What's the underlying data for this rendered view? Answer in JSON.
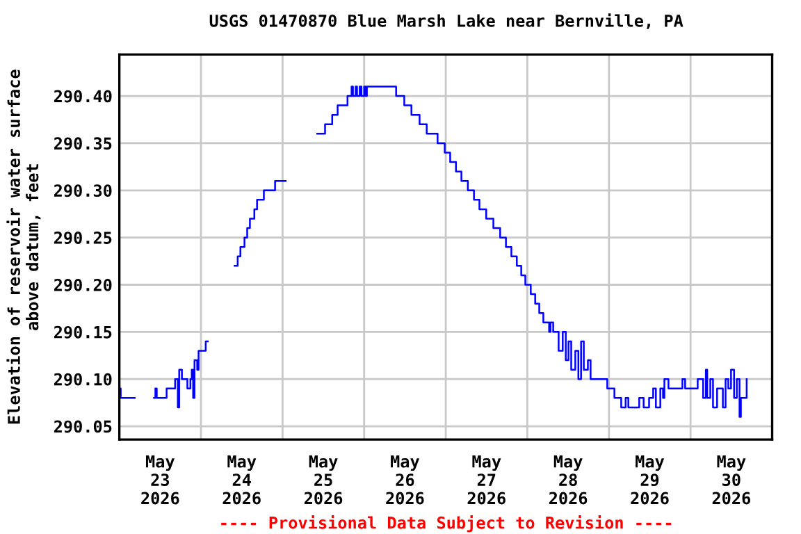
{
  "chart_data": {
    "type": "step",
    "title": "USGS 01470870 Blue Marsh Lake near Bernville, PA",
    "ylabel": "Elevation of reservoir water surface\nabove datum, feet",
    "annotations": [
      "---- Provisional Data Subject to Revision ----"
    ],
    "grid": true,
    "xlim": [
      "2026-05-23T00:00",
      "2026-05-31T00:00"
    ],
    "xticks": [
      {
        "value": "2026-05-23T00:00",
        "label": null
      },
      {
        "value": "2026-05-23T12:00",
        "label": "May\n23\n2026"
      },
      {
        "value": "2026-05-24T00:00",
        "label": null
      },
      {
        "value": "2026-05-24T12:00",
        "label": "May\n24\n2026"
      },
      {
        "value": "2026-05-25T00:00",
        "label": null
      },
      {
        "value": "2026-05-25T12:00",
        "label": "May\n25\n2026"
      },
      {
        "value": "2026-05-26T00:00",
        "label": null
      },
      {
        "value": "2026-05-26T12:00",
        "label": "May\n26\n2026"
      },
      {
        "value": "2026-05-27T00:00",
        "label": null
      },
      {
        "value": "2026-05-27T12:00",
        "label": "May\n27\n2026"
      },
      {
        "value": "2026-05-28T00:00",
        "label": null
      },
      {
        "value": "2026-05-28T12:00",
        "label": "May\n28\n2026"
      },
      {
        "value": "2026-05-29T00:00",
        "label": null
      },
      {
        "value": "2026-05-29T12:00",
        "label": "May\n29\n2026"
      },
      {
        "value": "2026-05-30T00:00",
        "label": null
      },
      {
        "value": "2026-05-30T12:00",
        "label": "May\n30\n2026"
      },
      {
        "value": "2026-05-31T00:00",
        "label": null
      }
    ],
    "ylim": [
      290.036,
      290.444
    ],
    "yticks": [
      {
        "value": 290.05,
        "label": "290.05"
      },
      {
        "value": 290.1,
        "label": "290.10"
      },
      {
        "value": 290.15,
        "label": "290.15"
      },
      {
        "value": 290.2,
        "label": "290.20"
      },
      {
        "value": 290.25,
        "label": "290.25"
      },
      {
        "value": 290.3,
        "label": "290.30"
      },
      {
        "value": 290.35,
        "label": "290.35"
      },
      {
        "value": 290.4,
        "label": "290.40"
      }
    ],
    "series": [
      {
        "color": "#0000ff",
        "x": [
          "2026-05-23T00:00",
          "2026-05-23T00:24",
          "2026-05-23T04:30",
          "2026-05-23T04:31",
          "2026-05-23T10:12",
          "2026-05-23T10:36",
          "2026-05-23T11:00",
          "2026-05-23T13:30",
          "2026-05-23T13:54",
          "2026-05-23T15:54",
          "2026-05-23T16:24",
          "2026-05-23T17:12",
          "2026-05-23T17:36",
          "2026-05-23T18:24",
          "2026-05-23T19:36",
          "2026-05-23T20:00",
          "2026-05-23T20:54",
          "2026-05-23T21:18",
          "2026-05-23T21:42",
          "2026-05-23T22:06",
          "2026-05-23T22:54",
          "2026-05-23T23:18",
          "2026-05-24T00:30",
          "2026-05-24T01:24",
          "2026-05-24T02:00",
          "2026-05-24T02:01",
          "2026-05-24T09:54",
          "2026-05-24T10:48",
          "2026-05-24T11:36",
          "2026-05-24T12:48",
          "2026-05-24T13:36",
          "2026-05-24T14:24",
          "2026-05-24T15:42",
          "2026-05-24T16:30",
          "2026-05-24T18:30",
          "2026-05-24T21:48",
          "2026-05-25T00:54",
          "2026-05-25T00:55",
          "2026-05-25T10:12",
          "2026-05-25T12:30",
          "2026-05-25T14:36",
          "2026-05-25T16:12",
          "2026-05-25T19:06",
          "2026-05-25T20:18",
          "2026-05-25T20:42",
          "2026-05-25T21:30",
          "2026-05-25T21:54",
          "2026-05-25T22:42",
          "2026-05-25T23:12",
          "2026-05-26T00:00",
          "2026-05-26T00:24",
          "2026-05-26T00:48",
          "2026-05-26T09:00",
          "2026-05-26T09:24",
          "2026-05-26T11:48",
          "2026-05-26T13:54",
          "2026-05-26T16:18",
          "2026-05-26T18:24",
          "2026-05-26T21:36",
          "2026-05-26T23:42",
          "2026-05-27T01:18",
          "2026-05-27T03:00",
          "2026-05-27T04:36",
          "2026-05-27T06:30",
          "2026-05-27T08:18",
          "2026-05-27T09:54",
          "2026-05-27T11:54",
          "2026-05-27T14:00",
          "2026-05-27T16:00",
          "2026-05-27T17:42",
          "2026-05-27T19:18",
          "2026-05-27T20:54",
          "2026-05-27T22:12",
          "2026-05-27T23:24",
          "2026-05-28T01:00",
          "2026-05-28T02:18",
          "2026-05-28T03:30",
          "2026-05-28T04:42",
          "2026-05-28T06:24",
          "2026-05-28T06:48",
          "2026-05-28T07:36",
          "2026-05-28T09:12",
          "2026-05-28T10:24",
          "2026-05-28T11:18",
          "2026-05-28T12:06",
          "2026-05-28T12:54",
          "2026-05-28T14:06",
          "2026-05-28T15:00",
          "2026-05-28T15:48",
          "2026-05-28T16:36",
          "2026-05-28T17:48",
          "2026-05-28T18:36",
          "2026-05-28T22:42",
          "2026-05-28T23:30",
          "2026-05-29T01:36",
          "2026-05-29T03:36",
          "2026-05-29T04:54",
          "2026-05-29T05:42",
          "2026-05-29T08:54",
          "2026-05-29T10:12",
          "2026-05-29T11:48",
          "2026-05-29T13:00",
          "2026-05-29T13:48",
          "2026-05-29T15:06",
          "2026-05-29T15:54",
          "2026-05-29T16:18",
          "2026-05-29T17:30",
          "2026-05-29T21:36",
          "2026-05-29T22:24",
          "2026-05-30T02:06",
          "2026-05-30T03:42",
          "2026-05-30T04:30",
          "2026-05-30T04:54",
          "2026-05-30T05:48",
          "2026-05-30T06:36",
          "2026-05-30T07:48",
          "2026-05-30T09:30",
          "2026-05-30T10:18",
          "2026-05-30T11:06",
          "2026-05-30T11:54",
          "2026-05-30T12:48",
          "2026-05-30T13:36",
          "2026-05-30T14:24",
          "2026-05-30T14:48",
          "2026-05-30T16:00",
          "2026-05-30T16:30"
        ],
        "values": [
          290.09,
          290.08,
          290.08,
          null,
          290.08,
          290.09,
          290.08,
          290.08,
          290.09,
          290.09,
          290.1,
          290.07,
          290.11,
          290.1,
          290.1,
          290.09,
          290.1,
          290.11,
          290.08,
          290.12,
          290.11,
          290.13,
          290.13,
          290.14,
          290.14,
          null,
          290.22,
          290.23,
          290.24,
          290.25,
          290.26,
          290.27,
          290.28,
          290.29,
          290.3,
          290.31,
          290.31,
          null,
          290.36,
          290.37,
          290.38,
          290.39,
          290.4,
          290.41,
          290.4,
          290.41,
          290.4,
          290.41,
          290.4,
          290.41,
          290.4,
          290.41,
          290.41,
          290.4,
          290.39,
          290.38,
          290.37,
          290.36,
          290.35,
          290.34,
          290.33,
          290.32,
          290.31,
          290.3,
          290.29,
          290.28,
          290.27,
          290.26,
          290.25,
          290.24,
          290.23,
          290.22,
          290.21,
          290.2,
          290.19,
          290.18,
          290.17,
          290.16,
          290.15,
          290.16,
          290.15,
          290.13,
          290.15,
          290.12,
          290.14,
          290.11,
          290.13,
          290.1,
          290.14,
          290.11,
          290.12,
          290.1,
          290.1,
          290.09,
          290.08,
          290.07,
          290.08,
          290.07,
          290.08,
          290.07,
          290.08,
          290.09,
          290.07,
          290.09,
          290.08,
          290.1,
          290.09,
          290.1,
          290.09,
          290.1,
          290.08,
          290.11,
          290.08,
          290.1,
          290.07,
          290.09,
          290.07,
          290.1,
          290.09,
          290.11,
          290.08,
          290.1,
          290.06,
          290.08,
          290.08,
          290.1
        ]
      }
    ]
  }
}
